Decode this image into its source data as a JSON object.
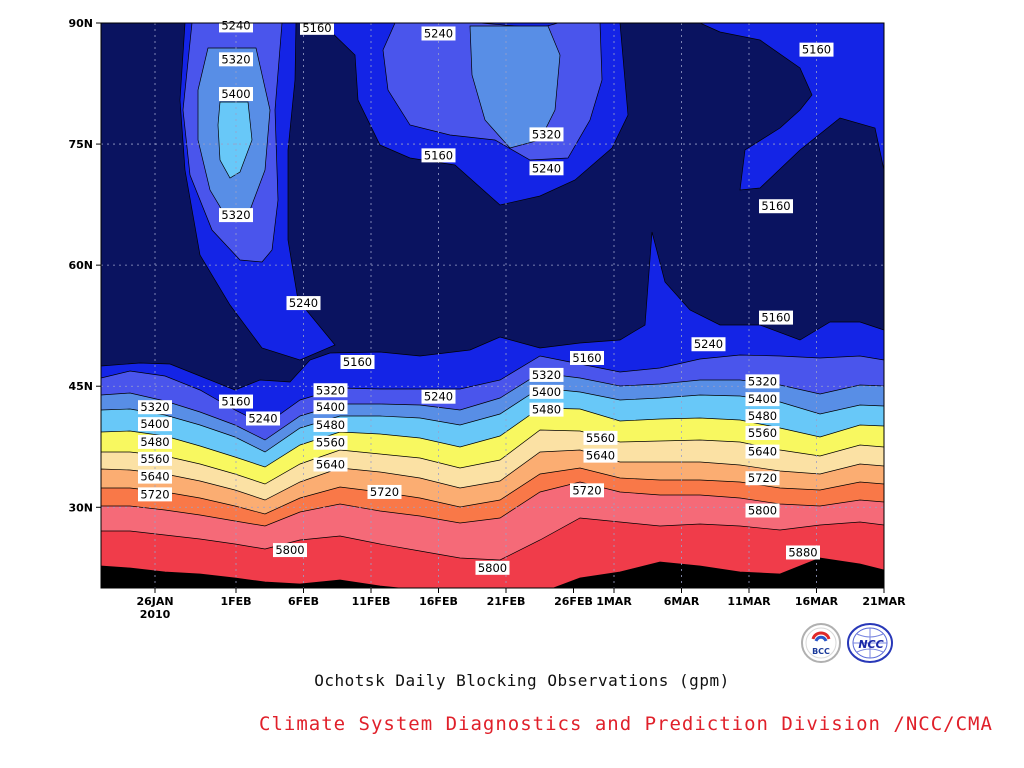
{
  "chart_data": {
    "type": "heatmap",
    "subtype": "filled contour (time-latitude Hovmoller)",
    "title": "Ochotsk Daily Blocking Observations (gpm)",
    "units": "gpm",
    "x_axis": {
      "tick_labels": [
        "26JAN",
        "1FEB",
        "6FEB",
        "11FEB",
        "16FEB",
        "21FEB",
        "26FEB",
        "1MAR",
        "6MAR",
        "11MAR",
        "16MAR",
        "21MAR"
      ],
      "year_label": "2010",
      "range": [
        "2010-01-22",
        "2010-03-21"
      ]
    },
    "y_axis": {
      "tick_labels": [
        "30N",
        "45N",
        "60N",
        "75N",
        "90N"
      ],
      "range": [
        20,
        90
      ]
    },
    "grid": true,
    "contour_levels": [
      5160,
      5240,
      5320,
      5400,
      5480,
      5560,
      5640,
      5720,
      5800,
      5880
    ],
    "fill_colors": [
      "#0a1360",
      "#1424e6",
      "#4a55ec",
      "#588ee6",
      "#68c8f8",
      "#f8f860",
      "#fbe1a4",
      "#fbad72",
      "#f97848",
      "#f56a78",
      "#f03c4a"
    ],
    "contour_labels": [
      {
        "value": "5240",
        "date": "2010-02-01",
        "lat": 89.7
      },
      {
        "value": "5320",
        "date": "2010-02-01",
        "lat": 85.5
      },
      {
        "value": "5400",
        "date": "2010-02-01",
        "lat": 81.2
      },
      {
        "value": "5320",
        "date": "2010-02-01",
        "lat": 66.2
      },
      {
        "value": "5240",
        "date": "2010-02-06",
        "lat": 55.3
      },
      {
        "value": "5160",
        "date": "2010-02-07",
        "lat": 89.4
      },
      {
        "value": "5240",
        "date": "2010-02-16",
        "lat": 88.7
      },
      {
        "value": "5160",
        "date": "2010-02-16",
        "lat": 73.6
      },
      {
        "value": "5320",
        "date": "2010-02-24",
        "lat": 76.2
      },
      {
        "value": "5240",
        "date": "2010-02-24",
        "lat": 72.0
      },
      {
        "value": "5160",
        "date": "2010-03-16",
        "lat": 86.7
      },
      {
        "value": "5160",
        "date": "2010-03-13",
        "lat": 67.3
      },
      {
        "value": "5160",
        "date": "2010-03-13",
        "lat": 53.5
      },
      {
        "value": "5240",
        "date": "2010-03-08",
        "lat": 50.2
      },
      {
        "value": "5160",
        "date": "2010-02-27",
        "lat": 48.5
      },
      {
        "value": "5160",
        "date": "2010-02-10",
        "lat": 48.0
      },
      {
        "value": "5320",
        "date": "2010-03-12",
        "lat": 45.6
      },
      {
        "value": "5400",
        "date": "2010-03-12",
        "lat": 43.4
      },
      {
        "value": "5480",
        "date": "2010-03-12",
        "lat": 41.3
      },
      {
        "value": "5560",
        "date": "2010-03-12",
        "lat": 39.2
      },
      {
        "value": "5640",
        "date": "2010-03-12",
        "lat": 36.9
      },
      {
        "value": "5720",
        "date": "2010-03-12",
        "lat": 33.6
      },
      {
        "value": "5800",
        "date": "2010-03-12",
        "lat": 29.6
      },
      {
        "value": "5880",
        "date": "2010-03-15",
        "lat": 24.4
      },
      {
        "value": "5160",
        "date": "2010-02-01",
        "lat": 43.1
      },
      {
        "value": "5240",
        "date": "2010-02-03",
        "lat": 41.0
      },
      {
        "value": "5320",
        "date": "2010-01-26",
        "lat": 42.4
      },
      {
        "value": "5400",
        "date": "2010-01-26",
        "lat": 40.3
      },
      {
        "value": "5480",
        "date": "2010-01-26",
        "lat": 38.1
      },
      {
        "value": "5560",
        "date": "2010-01-26",
        "lat": 36.0
      },
      {
        "value": "5640",
        "date": "2010-01-26",
        "lat": 33.8
      },
      {
        "value": "5720",
        "date": "2010-01-26",
        "lat": 31.6
      },
      {
        "value": "5320",
        "date": "2010-02-08",
        "lat": 44.5
      },
      {
        "value": "5400",
        "date": "2010-02-08",
        "lat": 42.4
      },
      {
        "value": "5480",
        "date": "2010-02-08",
        "lat": 40.2
      },
      {
        "value": "5560",
        "date": "2010-02-08",
        "lat": 38.0
      },
      {
        "value": "5640",
        "date": "2010-02-08",
        "lat": 35.3
      },
      {
        "value": "5720",
        "date": "2010-02-12",
        "lat": 31.9
      },
      {
        "value": "5240",
        "date": "2010-02-16",
        "lat": 43.7
      },
      {
        "value": "5320",
        "date": "2010-02-24",
        "lat": 46.4
      },
      {
        "value": "5400",
        "date": "2010-02-24",
        "lat": 44.3
      },
      {
        "value": "5480",
        "date": "2010-02-24",
        "lat": 42.1
      },
      {
        "value": "5560",
        "date": "2010-02-28",
        "lat": 38.6
      },
      {
        "value": "5640",
        "date": "2010-02-28",
        "lat": 36.4
      },
      {
        "value": "5720",
        "date": "2010-02-27",
        "lat": 32.1
      },
      {
        "value": "5800",
        "date": "2010-02-20",
        "lat": 22.5
      },
      {
        "value": "5800",
        "date": "2010-02-05",
        "lat": 24.7
      }
    ]
  },
  "footer": {
    "subtitle": "Ochotsk Daily Blocking Observations (gpm)",
    "credit": "Climate System Diagnostics and Prediction Division /NCC/CMA",
    "logo_left_text": "BCC",
    "logo_right_text": "NCC"
  }
}
